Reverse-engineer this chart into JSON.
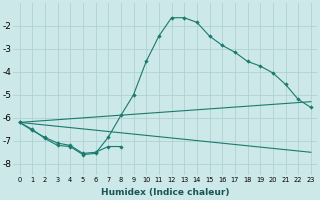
{
  "xlabel": "Humidex (Indice chaleur)",
  "background_color": "#cce8e8",
  "grid_color": "#aacece",
  "line_color": "#1a7a6e",
  "xlim": [
    -0.5,
    23.5
  ],
  "ylim": [
    -8.5,
    -1.0
  ],
  "yticks": [
    -8,
    -7,
    -6,
    -5,
    -4,
    -3,
    -2
  ],
  "xticks": [
    0,
    1,
    2,
    3,
    4,
    5,
    6,
    7,
    8,
    9,
    10,
    11,
    12,
    13,
    14,
    15,
    16,
    17,
    18,
    19,
    20,
    21,
    22,
    23
  ],
  "curve_x": [
    0,
    1,
    2,
    3,
    4,
    5,
    6,
    7,
    8,
    9,
    10,
    11,
    12,
    13,
    14,
    15,
    16,
    17,
    18,
    19,
    20,
    21,
    22,
    23
  ],
  "curve_y": [
    -6.2,
    -6.5,
    -6.9,
    -7.2,
    -7.25,
    -7.6,
    -7.55,
    -6.85,
    -5.9,
    -5.0,
    -3.55,
    -2.45,
    -1.65,
    -1.65,
    -1.85,
    -2.45,
    -2.85,
    -3.15,
    -3.55,
    -3.75,
    -4.05,
    -4.55,
    -5.2,
    -5.55
  ],
  "upper_line_x": [
    0,
    23
  ],
  "upper_line_y": [
    -6.2,
    -5.3
  ],
  "lower_line_x": [
    0,
    23
  ],
  "lower_line_y": [
    -6.2,
    -7.5
  ],
  "zigzag_x": [
    0,
    1,
    2,
    3,
    4,
    5,
    6,
    7,
    8
  ],
  "zigzag_y": [
    -6.2,
    -6.55,
    -6.85,
    -7.1,
    -7.2,
    -7.55,
    -7.5,
    -7.25,
    -7.25
  ]
}
